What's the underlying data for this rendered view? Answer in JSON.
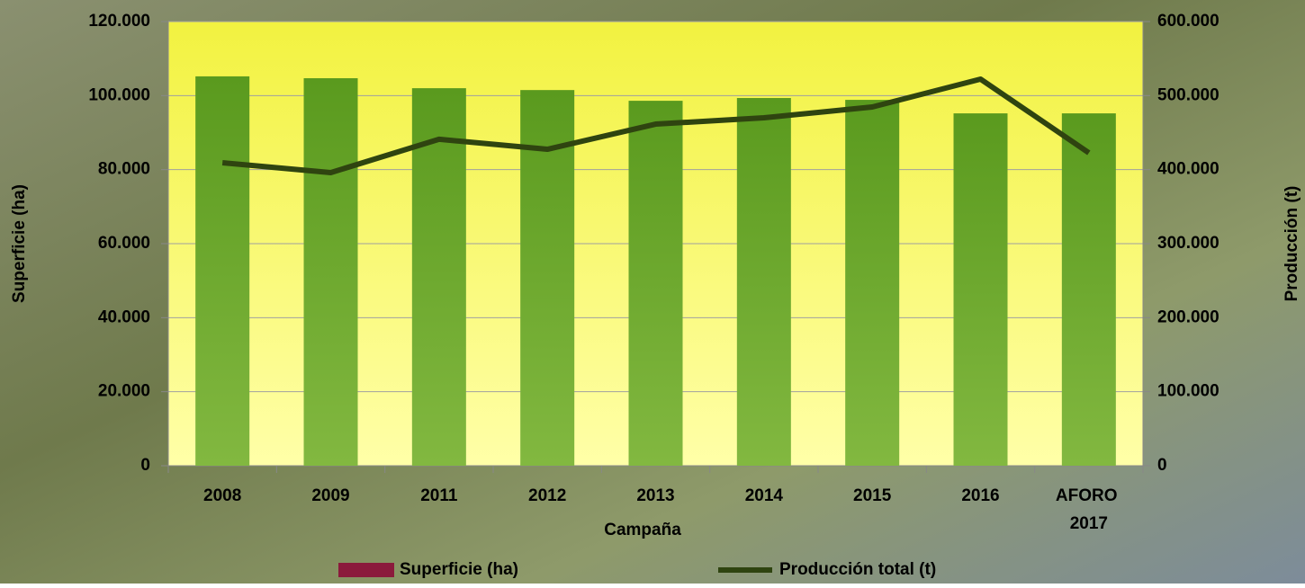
{
  "chart_data": {
    "type": "bar-line",
    "x_label": "Campaña",
    "y_label": "Superficie (ha)",
    "y2_label": "Producción (t)",
    "categories": [
      "2008",
      "2009",
      "2011",
      "2012",
      "2013",
      "2014",
      "2015",
      "2016",
      "AFORO 2017"
    ],
    "series": [
      {
        "name": "Superficie (ha)",
        "type": "bar",
        "color": "#5e9e22",
        "legend_color": "#8b1a3c",
        "values": [
          105200,
          104700,
          102000,
          101500,
          98600,
          99350,
          98850,
          95200,
          95200
        ]
      },
      {
        "name": "Producción total (t)",
        "type": "line",
        "axis": "y2",
        "color": "#2f4410",
        "values": [
          409300,
          396000,
          441000,
          427500,
          461500,
          470000,
          484600,
          522300,
          422700
        ]
      }
    ],
    "ylim": [
      0,
      120000
    ],
    "yticks": [
      0,
      {
        "value": 20000,
        "label": "20.000"
      },
      {
        "value": 40000,
        "label": "40.000"
      },
      {
        "value": 60000,
        "label": "60.000"
      },
      {
        "value": 80000,
        "label": "80.000"
      },
      {
        "value": 100000,
        "label": "100.000"
      },
      {
        "value": 120000,
        "label": "120.000"
      }
    ],
    "y2lim": [
      0,
      600000
    ],
    "y2ticks": [
      0,
      {
        "value": 100000,
        "label": "100.000"
      },
      {
        "value": 200000,
        "label": "200.000"
      },
      {
        "value": 300000,
        "label": "300.000"
      },
      {
        "value": 400000,
        "label": "400.000"
      },
      {
        "value": 500000,
        "label": "500.000"
      },
      {
        "value": 600000,
        "label": "600.000"
      }
    ],
    "grid": true,
    "legend": "bottom"
  }
}
